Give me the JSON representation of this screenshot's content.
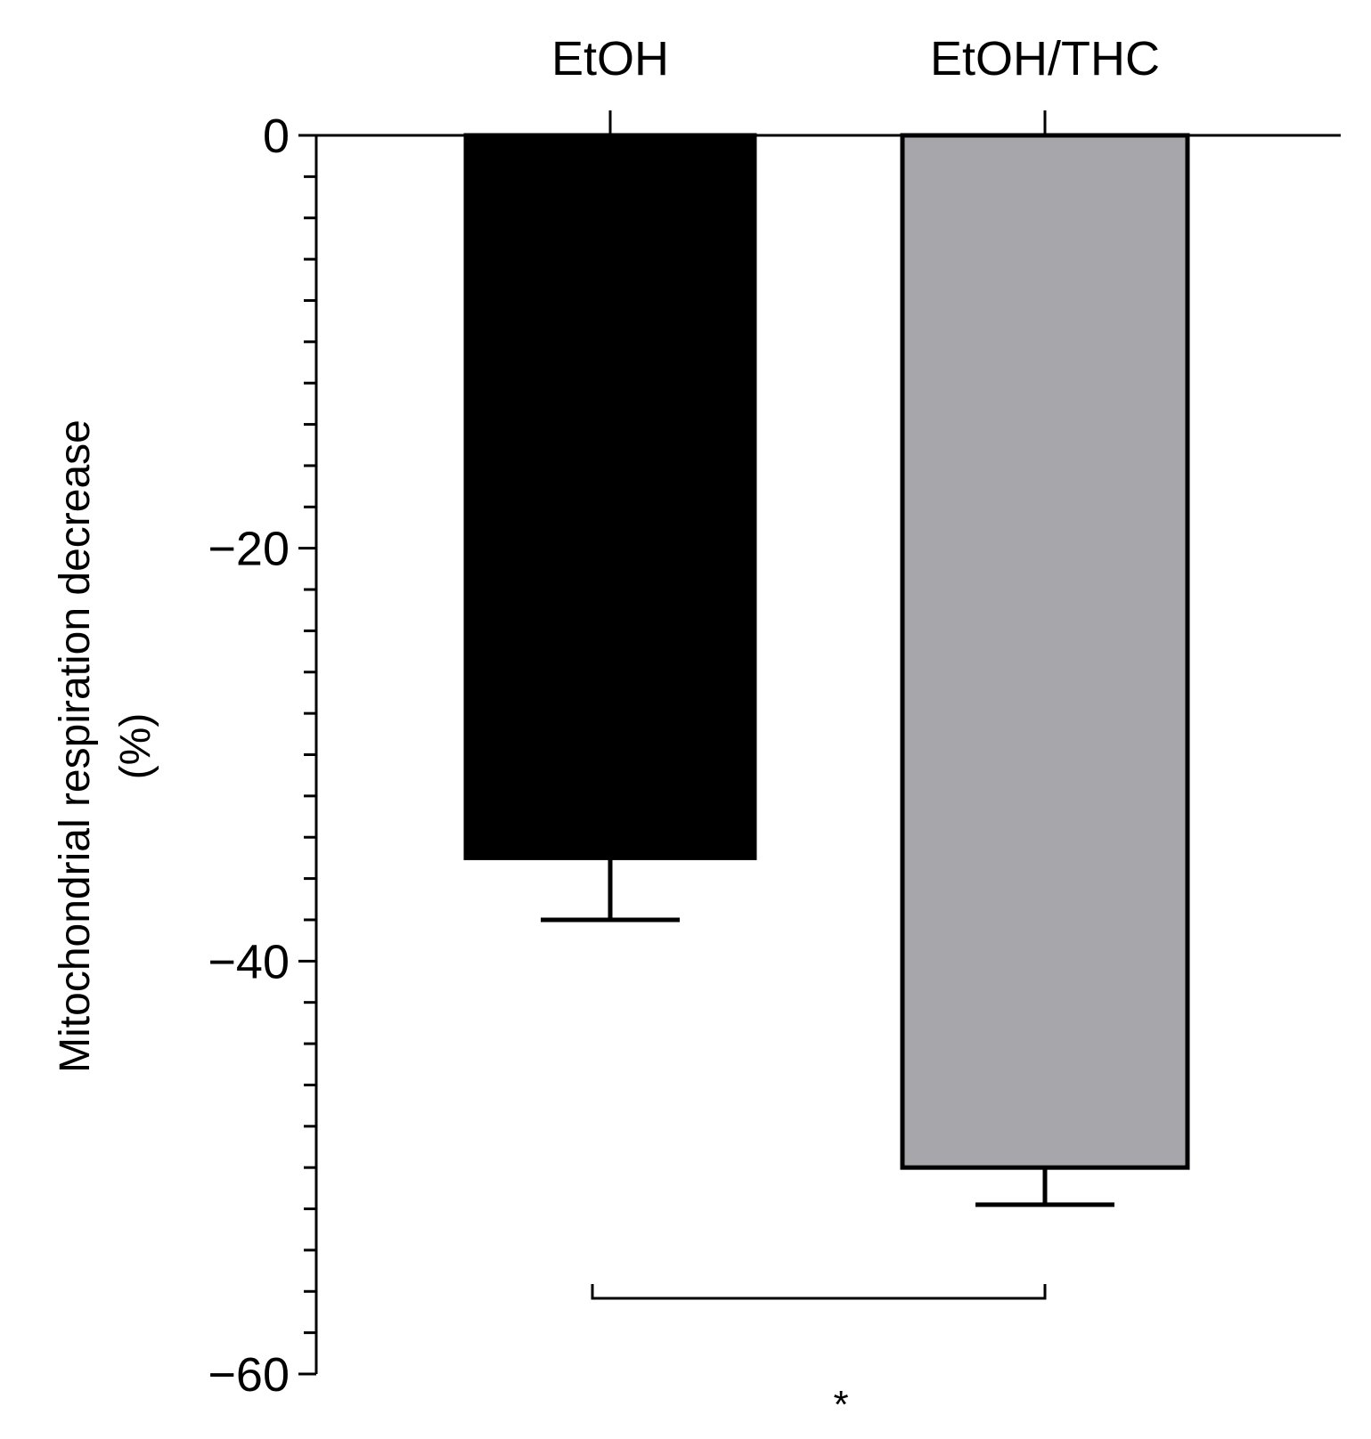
{
  "chart_data": {
    "type": "bar",
    "categories": [
      "EtOH",
      "EtOH/THC"
    ],
    "values": [
      -35,
      -50
    ],
    "errors": [
      3,
      1.8
    ],
    "colors": [
      "#000000",
      "#a7a6ab"
    ],
    "ylabel_line1": "Mitochondrial respiration decrease",
    "ylabel_line2": "(%)",
    "ylim": [
      -60,
      0
    ],
    "yticks_major": [
      0,
      -20,
      -40,
      -60
    ],
    "ytick_labels": [
      "0",
      "−20",
      "−40",
      "−60"
    ],
    "yticks_minor_step": 2,
    "xaxis_position": "top",
    "significance": {
      "between": [
        0,
        1
      ],
      "label": "*"
    }
  }
}
